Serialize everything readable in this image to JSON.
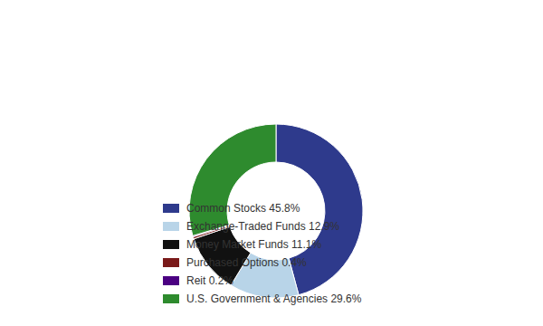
{
  "chart_data": {
    "type": "donut",
    "categories": [
      "Common Stocks 45.8%",
      "Exchange-Traded Funds 12.9%",
      "Money Market Funds 11.1%",
      "Purchased Options 0.4%",
      "Reit 0.2%",
      "U.S. Government & Agencies 29.6%"
    ],
    "values": [
      45.8,
      12.9,
      11.1,
      0.4,
      0.2,
      29.6
    ],
    "colors": [
      "#2e3a8c",
      "#b8d4e8",
      "#111111",
      "#7a1a1a",
      "#4b0082",
      "#2e8b2e"
    ]
  }
}
